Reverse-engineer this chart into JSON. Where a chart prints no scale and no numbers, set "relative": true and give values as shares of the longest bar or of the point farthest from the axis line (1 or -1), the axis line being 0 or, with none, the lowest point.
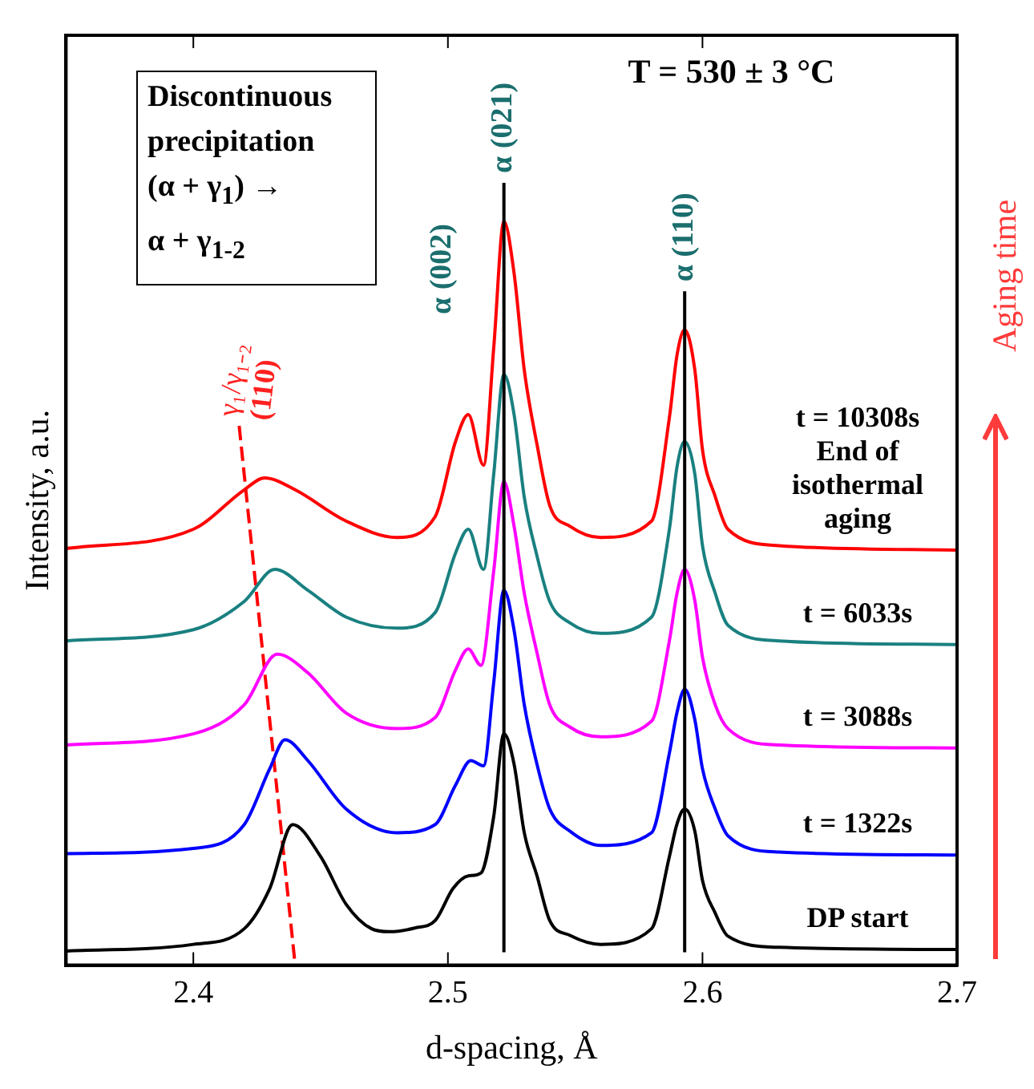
{
  "chart_data": {
    "type": "line",
    "xlabel": "d-spacing, Å",
    "ylabel": "Intensity, a.u.",
    "relative": true,
    "xlim": [
      2.35,
      2.7
    ],
    "xticks": [
      2.4,
      2.5,
      2.6,
      2.7
    ],
    "tick_labels": "x",
    "marker": "none",
    "line_style": "solid",
    "series": [
      {
        "name": "DP start",
        "color": "#000000",
        "x": [
          2.35,
          2.4,
          2.42,
          2.43,
          2.439,
          2.45,
          2.46,
          2.47,
          2.477,
          2.487,
          2.495,
          2.502,
          2.508,
          2.513,
          2.518,
          2.522,
          2.526,
          2.53,
          2.535,
          2.54,
          2.548,
          2.56,
          2.58,
          2.587,
          2.59,
          2.593,
          2.597,
          2.6,
          2.605,
          2.61,
          2.63,
          2.7
        ],
        "values": [
          0.019,
          0.028,
          0.049,
          0.103,
          0.189,
          0.146,
          0.082,
          0.049,
          0.045,
          0.05,
          0.06,
          0.103,
          0.12,
          0.124,
          0.2,
          0.311,
          0.27,
          0.178,
          0.12,
          0.06,
          0.04,
          0.028,
          0.049,
          0.146,
          0.19,
          0.21,
          0.18,
          0.114,
          0.07,
          0.039,
          0.024,
          0.021
        ]
      },
      {
        "name": "t = 1322s",
        "color": "#0000ff",
        "x": [
          2.35,
          2.4,
          2.42,
          2.43,
          2.436,
          2.445,
          2.46,
          2.48,
          2.495,
          2.503,
          2.509,
          2.514,
          2.518,
          2.522,
          2.526,
          2.53,
          2.535,
          2.54,
          2.548,
          2.56,
          2.58,
          2.587,
          2.59,
          2.593,
          2.597,
          2.6,
          2.605,
          2.61,
          2.63,
          2.7
        ],
        "values": [
          0.15,
          0.157,
          0.189,
          0.264,
          0.303,
          0.275,
          0.21,
          0.178,
          0.189,
          0.242,
          0.275,
          0.268,
          0.38,
          0.504,
          0.45,
          0.35,
          0.27,
          0.21,
          0.18,
          0.161,
          0.178,
          0.285,
          0.34,
          0.371,
          0.33,
          0.264,
          0.21,
          0.174,
          0.152,
          0.148
        ]
      },
      {
        "name": "t = 3088s",
        "color": "#ff00ff",
        "x": [
          2.35,
          2.4,
          2.42,
          2.433,
          2.445,
          2.46,
          2.48,
          2.495,
          2.503,
          2.508,
          2.513,
          2.518,
          2.522,
          2.526,
          2.53,
          2.535,
          2.54,
          2.548,
          2.56,
          2.58,
          2.587,
          2.59,
          2.593,
          2.597,
          2.6,
          2.605,
          2.61,
          2.63,
          2.7
        ],
        "values": [
          0.296,
          0.311,
          0.35,
          0.418,
          0.393,
          0.339,
          0.318,
          0.333,
          0.397,
          0.425,
          0.403,
          0.53,
          0.65,
          0.59,
          0.5,
          0.42,
          0.35,
          0.32,
          0.307,
          0.328,
          0.436,
          0.5,
          0.532,
          0.49,
          0.414,
          0.35,
          0.318,
          0.296,
          0.292
        ]
      },
      {
        "name": "t = 6033s",
        "color": "#1a8080",
        "x": [
          2.35,
          2.4,
          2.42,
          2.432,
          2.445,
          2.46,
          2.48,
          2.495,
          2.503,
          2.508,
          2.514,
          2.518,
          2.522,
          2.526,
          2.53,
          2.535,
          2.54,
          2.548,
          2.56,
          2.58,
          2.587,
          2.59,
          2.593,
          2.597,
          2.6,
          2.605,
          2.61,
          2.63,
          2.7
        ],
        "values": [
          0.436,
          0.451,
          0.489,
          0.532,
          0.504,
          0.468,
          0.453,
          0.474,
          0.554,
          0.586,
          0.532,
          0.66,
          0.794,
          0.74,
          0.629,
          0.55,
          0.489,
          0.46,
          0.446,
          0.468,
          0.586,
          0.67,
          0.704,
          0.66,
          0.564,
          0.5,
          0.457,
          0.436,
          0.431
        ]
      },
      {
        "name": "t = 10308s End of isothermal aging",
        "color": "#ff0000",
        "x": [
          2.35,
          2.4,
          2.42,
          2.428,
          2.44,
          2.46,
          2.48,
          2.495,
          2.503,
          2.508,
          2.514,
          2.518,
          2.522,
          2.526,
          2.53,
          2.535,
          2.54,
          2.548,
          2.56,
          2.58,
          2.587,
          2.59,
          2.593,
          2.597,
          2.6,
          2.605,
          2.61,
          2.63,
          2.7
        ],
        "values": [
          0.56,
          0.586,
          0.639,
          0.655,
          0.639,
          0.597,
          0.575,
          0.603,
          0.704,
          0.74,
          0.672,
          0.83,
          1.0,
          0.93,
          0.8,
          0.7,
          0.618,
          0.59,
          0.575,
          0.597,
          0.736,
          0.82,
          0.854,
          0.8,
          0.693,
          0.63,
          0.586,
          0.564,
          0.558
        ]
      },
      {
        "type": "line",
        "color": "#ff0000",
        "line_style": "dashed",
        "x": [
          2.418,
          2.44
        ],
        "values": [
          0.725,
          0
        ]
      }
    ],
    "ref_lines": [
      {
        "axis": "x",
        "value": 2.522,
        "label": "α (021)",
        "color": "#000000"
      },
      {
        "axis": "x",
        "value": 2.593,
        "label": "α (110)",
        "color": "#000000"
      }
    ],
    "annotations": [
      "Discontinuous precipitation (α + γ$_{1}$) → α + γ$_{1-2}$",
      "T = 530 ± 3 °C",
      "α (002)",
      {
        "text": "γ₁/γ₁₋₂ (110)",
        "x": 2.418,
        "y": 0.725
      },
      "Aging time"
    ]
  }
}
